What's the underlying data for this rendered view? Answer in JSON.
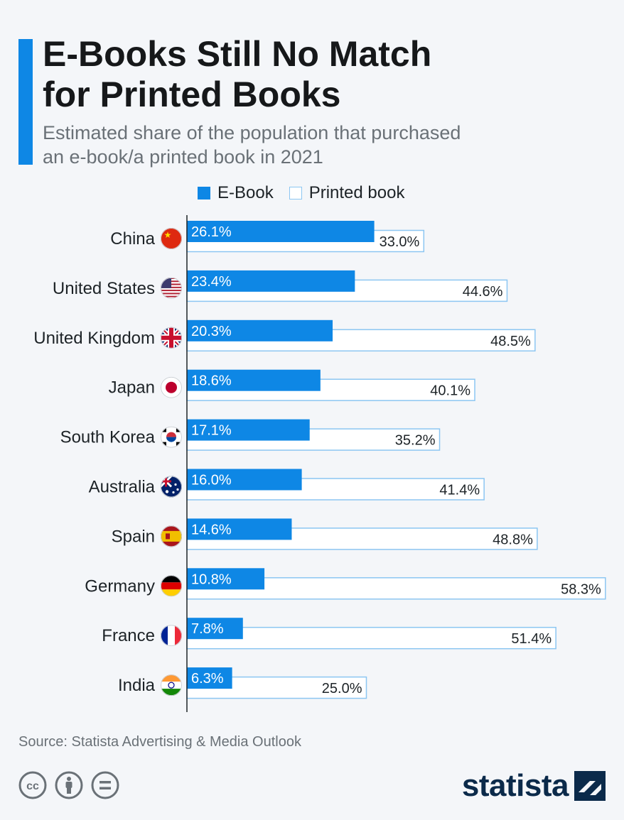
{
  "header": {
    "title": "E-Books Still No Match\nfor Printed Books",
    "subtitle": "Estimated share of the population that purchased\nan e-book/a printed book in 2021"
  },
  "colors": {
    "ebook": "#0e87e5",
    "printed_border": "#8cc6f2",
    "printed_fill": "#ffffff",
    "accent": "#0e87e5"
  },
  "chart_data": {
    "type": "bar",
    "orientation": "horizontal",
    "categories": [
      "China",
      "United States",
      "United Kingdom",
      "Japan",
      "South Korea",
      "Australia",
      "Spain",
      "Germany",
      "France",
      "India"
    ],
    "series": [
      {
        "name": "E-Book",
        "values": [
          26.1,
          23.4,
          20.3,
          18.6,
          17.1,
          16.0,
          14.6,
          10.8,
          7.8,
          6.3
        ],
        "labels": [
          "26.1%",
          "23.4%",
          "20.3%",
          "18.6%",
          "17.1%",
          "16.0%",
          "14.6%",
          "10.8%",
          "7.8%",
          "6.3%"
        ]
      },
      {
        "name": "Printed book",
        "values": [
          33.0,
          44.6,
          48.5,
          40.1,
          35.2,
          41.4,
          48.8,
          58.3,
          51.4,
          25.0
        ],
        "labels": [
          "33.0%",
          "44.6%",
          "48.5%",
          "40.1%",
          "35.2%",
          "41.4%",
          "48.8%",
          "58.3%",
          "51.4%",
          "25.0%"
        ]
      }
    ],
    "flags": [
      "china-flag-icon",
      "usa-flag-icon",
      "uk-flag-icon",
      "japan-flag-icon",
      "south-korea-flag-icon",
      "australia-flag-icon",
      "spain-flag-icon",
      "germany-flag-icon",
      "france-flag-icon",
      "india-flag-icon"
    ],
    "legend": "top",
    "grid": false
  },
  "footer": {
    "source": "Source: Statista Advertising & Media Outlook",
    "brand": "statista",
    "license_icons": [
      "cc-icon",
      "by-icon",
      "nd-icon"
    ]
  }
}
